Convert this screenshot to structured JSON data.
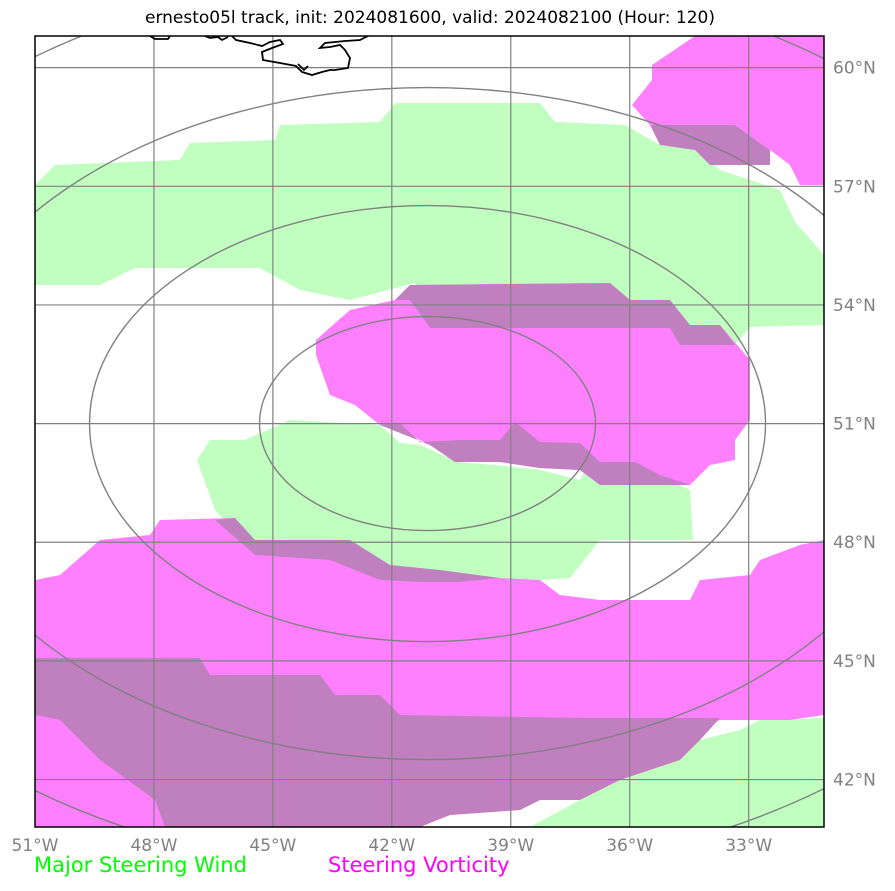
{
  "title": "ernesto05l track, init: 2024081600, valid: 2024082100 (Hour: 120)",
  "legend": {
    "wind_label": "Major Steering Wind",
    "vorticity_label": "Steering Vorticity"
  },
  "colors": {
    "wind": "#00ff00",
    "wind_fill": "#c0ffc0",
    "vorticity": "#ff00ff",
    "vorticity_fill": "#ff80ff",
    "overlap_fill": "#c080c0",
    "grid": "#808080",
    "coastline": "#000000"
  },
  "chart_data": {
    "type": "map",
    "projection": "lon-lat",
    "lon_range": [
      -51,
      -31.1
    ],
    "lat_range": [
      40.8,
      60.8
    ],
    "lon_ticks": [
      -51,
      -48,
      -45,
      -42,
      -39,
      -36,
      -33
    ],
    "lat_ticks": [
      42,
      45,
      48,
      51,
      54,
      57,
      60
    ],
    "lon_tick_labels": [
      "51°W",
      "48°W",
      "45°W",
      "42°W",
      "39°W",
      "36°W",
      "33°W"
    ],
    "lat_tick_labels": [
      "42°N",
      "45°N",
      "48°N",
      "51°N",
      "54°N",
      "57°N",
      "60°N"
    ],
    "grid": true,
    "range_rings": {
      "center": [
        -41.1,
        51.0
      ],
      "count": 4
    },
    "layers": [
      {
        "name": "Major Steering Wind",
        "color": "#c0ffc0"
      },
      {
        "name": "Steering Vorticity",
        "color": "#ff80ff"
      }
    ]
  }
}
